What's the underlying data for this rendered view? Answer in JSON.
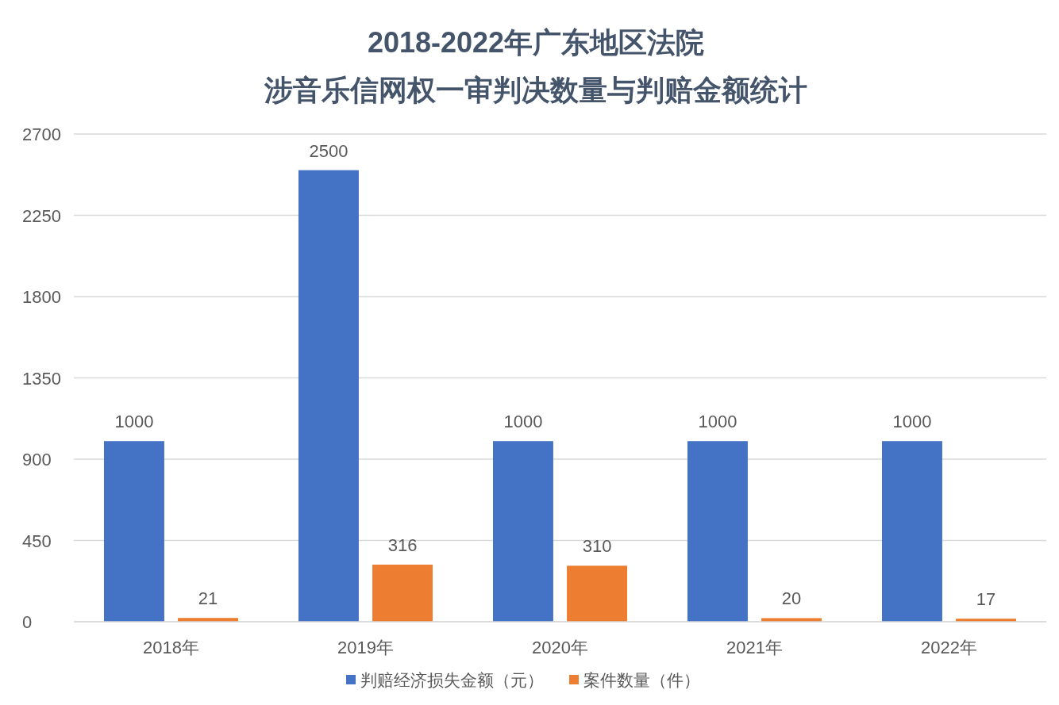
{
  "chart_data": {
    "type": "bar",
    "title": "2018-2022年广东地区法院",
    "subtitle": "涉音乐信网权一审判决数量与判赔金额统计",
    "categories": [
      "2018年",
      "2019年",
      "2020年",
      "2021年",
      "2022年"
    ],
    "series": [
      {
        "name": "判赔经济损失金额（元）",
        "color": "#4472c4",
        "values": [
          1000,
          2500,
          1000,
          1000,
          1000
        ]
      },
      {
        "name": "案件数量（件）",
        "color": "#ed7d31",
        "values": [
          21,
          316,
          310,
          20,
          17
        ]
      }
    ],
    "ylim": [
      0,
      2700
    ],
    "yticks": [
      0,
      450,
      900,
      1350,
      1800,
      2250,
      2700
    ],
    "grid": "y",
    "legend": "bottom",
    "data_labels": true
  }
}
